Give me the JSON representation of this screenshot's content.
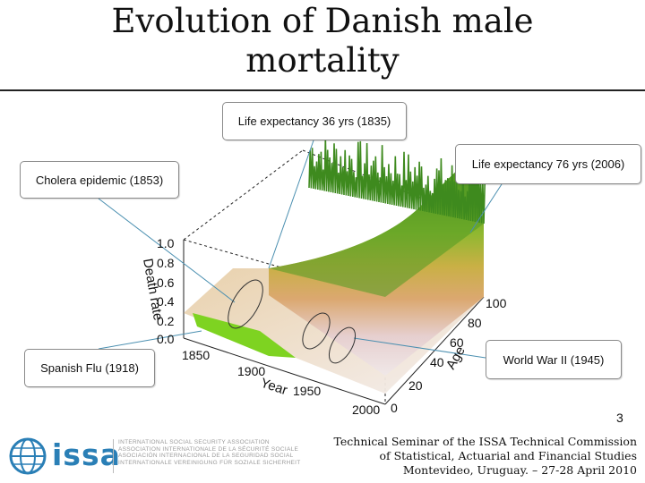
{
  "slide": {
    "title_line1": "Evolution of Danish male",
    "title_line2": "mortality",
    "page_number": "3"
  },
  "callouts": {
    "life_expectancy_1835": "Life expectancy 36 yrs (1835)",
    "life_expectancy_2006": "Life expectancy 76 yrs (2006)",
    "cholera": "Cholera epidemic (1853)",
    "spanish_flu": "Spanish Flu (1918)",
    "world_war_2": "World War II (1945)"
  },
  "plot": {
    "z_axis_label": "Death rate",
    "z_ticks": [
      "1.0",
      "0.8",
      "0.6",
      "0.4",
      "0.2",
      "0.0"
    ],
    "year_axis_label": "Year",
    "year_ticks": [
      "1850",
      "1900",
      "1950",
      "2000"
    ],
    "age_axis_label": "Age",
    "age_ticks": [
      "100",
      "80",
      "60",
      "40",
      "20",
      "0"
    ],
    "colors": {
      "low": "#e8d8d8",
      "mid": "#d8a05a",
      "high": "#3e8a1e",
      "flu_spike": "#7ed321"
    }
  },
  "footer": {
    "line1": "Technical Seminar of the ISSA Technical Commission",
    "line2": "of Statistical, Actuarial and Financial Studies",
    "line3": "Montevideo, Uruguay. – 27-28 April 2010"
  },
  "logo": {
    "word": "issa",
    "lines": [
      "INTERNATIONAL SOCIAL SECURITY ASSOCIATION",
      "ASSOCIATION INTERNATIONALE DE LA SÉCURITÉ SOCIALE",
      "ASOCIACIÓN INTERNACIONAL DE LA SEGURIDAD SOCIAL",
      "INTERNATIONALE VEREINIGUNG FÜR SOZIALE SICHERHEIT"
    ]
  }
}
